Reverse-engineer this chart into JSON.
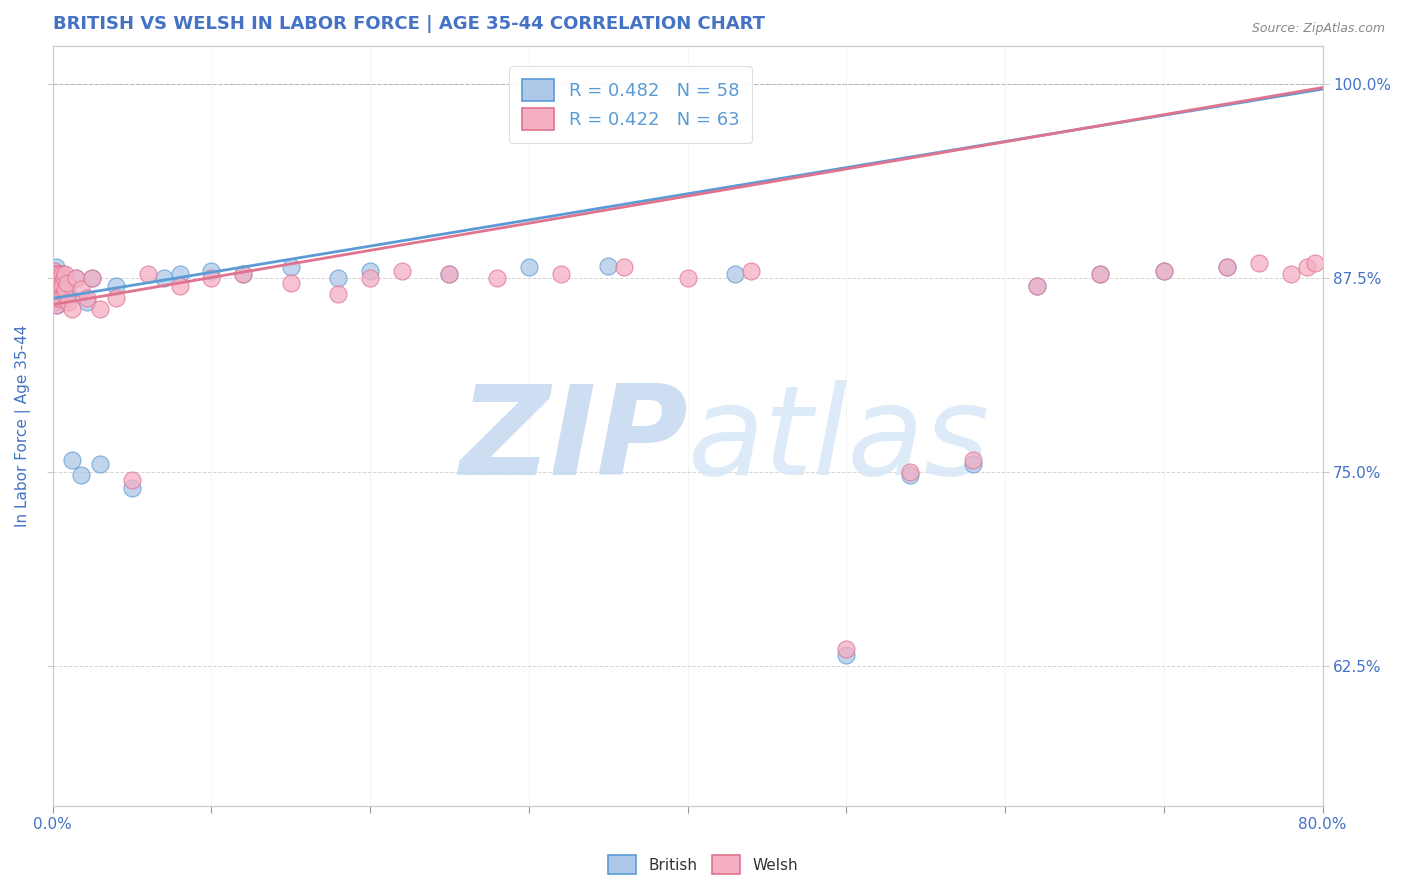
{
  "title": "BRITISH VS WELSH IN LABOR FORCE | AGE 35-44 CORRELATION CHART",
  "source_text": "Source: ZipAtlas.com",
  "ylabel": "In Labor Force | Age 35-44",
  "xlim": [
    0.0,
    0.8
  ],
  "ylim": [
    0.535,
    1.025
  ],
  "ytick_labels": [
    "62.5%",
    "75.0%",
    "87.5%",
    "100.0%"
  ],
  "ytick_positions": [
    0.625,
    0.75,
    0.875,
    1.0
  ],
  "legend_R_british": "R = 0.482",
  "legend_N_british": "N = 58",
  "legend_R_welsh": "R = 0.422",
  "legend_N_welsh": "N = 63",
  "british_color": "#adc8e8",
  "welsh_color": "#f5afc3",
  "british_line_color": "#5b9bd5",
  "welsh_line_color": "#e0738e",
  "title_color": "#4472c4",
  "source_color": "#888888",
  "tick_label_color": "#4472c4",
  "background_color": "#ffffff",
  "watermark_color": "#dce8f5",
  "watermark_alpha": 0.9,
  "british_x": [
    0.001,
    0.001,
    0.001,
    0.001,
    0.001,
    0.002,
    0.002,
    0.002,
    0.002,
    0.002,
    0.002,
    0.002,
    0.003,
    0.003,
    0.003,
    0.003,
    0.003,
    0.004,
    0.004,
    0.004,
    0.004,
    0.005,
    0.005,
    0.005,
    0.006,
    0.006,
    0.007,
    0.007,
    0.008,
    0.008,
    0.009,
    0.01,
    0.012,
    0.015,
    0.018,
    0.022,
    0.025,
    0.03,
    0.04,
    0.05,
    0.07,
    0.08,
    0.1,
    0.12,
    0.15,
    0.18,
    0.2,
    0.25,
    0.3,
    0.35,
    0.43,
    0.5,
    0.54,
    0.58,
    0.62,
    0.66,
    0.7,
    0.74
  ],
  "british_y": [
    0.875,
    0.878,
    0.872,
    0.869,
    0.88,
    0.873,
    0.876,
    0.87,
    0.867,
    0.882,
    0.865,
    0.86,
    0.875,
    0.87,
    0.868,
    0.862,
    0.858,
    0.878,
    0.872,
    0.868,
    0.865,
    0.875,
    0.87,
    0.862,
    0.878,
    0.868,
    0.872,
    0.865,
    0.875,
    0.862,
    0.87,
    0.865,
    0.758,
    0.875,
    0.748,
    0.86,
    0.875,
    0.755,
    0.87,
    0.74,
    0.875,
    0.878,
    0.88,
    0.878,
    0.882,
    0.875,
    0.88,
    0.878,
    0.882,
    0.883,
    0.878,
    0.632,
    0.748,
    0.755,
    0.87,
    0.878,
    0.88,
    0.882
  ],
  "welsh_x": [
    0.001,
    0.001,
    0.001,
    0.001,
    0.001,
    0.001,
    0.002,
    0.002,
    0.002,
    0.002,
    0.002,
    0.002,
    0.003,
    0.003,
    0.003,
    0.003,
    0.004,
    0.004,
    0.004,
    0.005,
    0.005,
    0.005,
    0.006,
    0.006,
    0.007,
    0.007,
    0.008,
    0.008,
    0.009,
    0.01,
    0.012,
    0.015,
    0.018,
    0.022,
    0.025,
    0.03,
    0.04,
    0.05,
    0.06,
    0.08,
    0.1,
    0.12,
    0.15,
    0.18,
    0.2,
    0.22,
    0.25,
    0.28,
    0.32,
    0.36,
    0.4,
    0.44,
    0.5,
    0.54,
    0.58,
    0.62,
    0.66,
    0.7,
    0.74,
    0.76,
    0.78,
    0.79,
    0.795
  ],
  "welsh_y": [
    0.875,
    0.872,
    0.868,
    0.88,
    0.865,
    0.86,
    0.878,
    0.872,
    0.868,
    0.865,
    0.862,
    0.858,
    0.878,
    0.875,
    0.87,
    0.862,
    0.878,
    0.872,
    0.865,
    0.875,
    0.87,
    0.862,
    0.878,
    0.87,
    0.875,
    0.865,
    0.878,
    0.868,
    0.872,
    0.86,
    0.855,
    0.875,
    0.868,
    0.862,
    0.875,
    0.855,
    0.862,
    0.745,
    0.878,
    0.87,
    0.875,
    0.878,
    0.872,
    0.865,
    0.875,
    0.88,
    0.878,
    0.875,
    0.878,
    0.882,
    0.875,
    0.88,
    0.636,
    0.75,
    0.758,
    0.87,
    0.878,
    0.88,
    0.882,
    0.885,
    0.878,
    0.882,
    0.885
  ],
  "british_trendline": [
    0.862,
    0.997
  ],
  "welsh_trendline": [
    0.858,
    0.998
  ]
}
